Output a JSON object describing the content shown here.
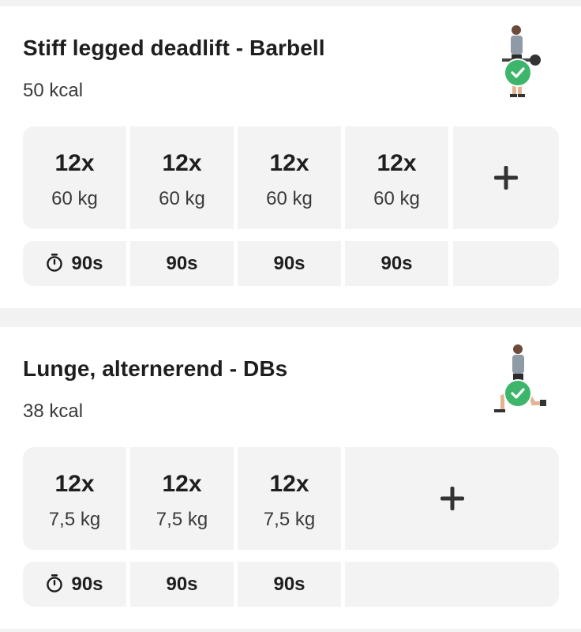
{
  "exercises": [
    {
      "title": "Stiff legged deadlift - Barbell",
      "kcal": "50 kcal",
      "thumbnail_icon": "deadlift-figure-icon",
      "completed": true,
      "sets": [
        {
          "reps": "12x",
          "weight": "60 kg"
        },
        {
          "reps": "12x",
          "weight": "60 kg"
        },
        {
          "reps": "12x",
          "weight": "60 kg"
        },
        {
          "reps": "12x",
          "weight": "60 kg"
        }
      ],
      "rests": [
        "90s",
        "90s",
        "90s",
        "90s"
      ]
    },
    {
      "title": "Lunge, alternerend - DBs",
      "kcal": "38 kcal",
      "thumbnail_icon": "lunge-figure-icon",
      "completed": true,
      "sets": [
        {
          "reps": "12x",
          "weight": "7,5 kg"
        },
        {
          "reps": "12x",
          "weight": "7,5 kg"
        },
        {
          "reps": "12x",
          "weight": "7,5 kg"
        }
      ],
      "rests": [
        "90s",
        "90s",
        "90s"
      ]
    }
  ],
  "icons": {
    "add": "plus-icon",
    "rest": "timer-icon",
    "done": "checkmark-icon"
  },
  "colors": {
    "check_green": "#3db56b",
    "cell_bg": "#f3f3f3",
    "separator": "#f2f2f2"
  }
}
